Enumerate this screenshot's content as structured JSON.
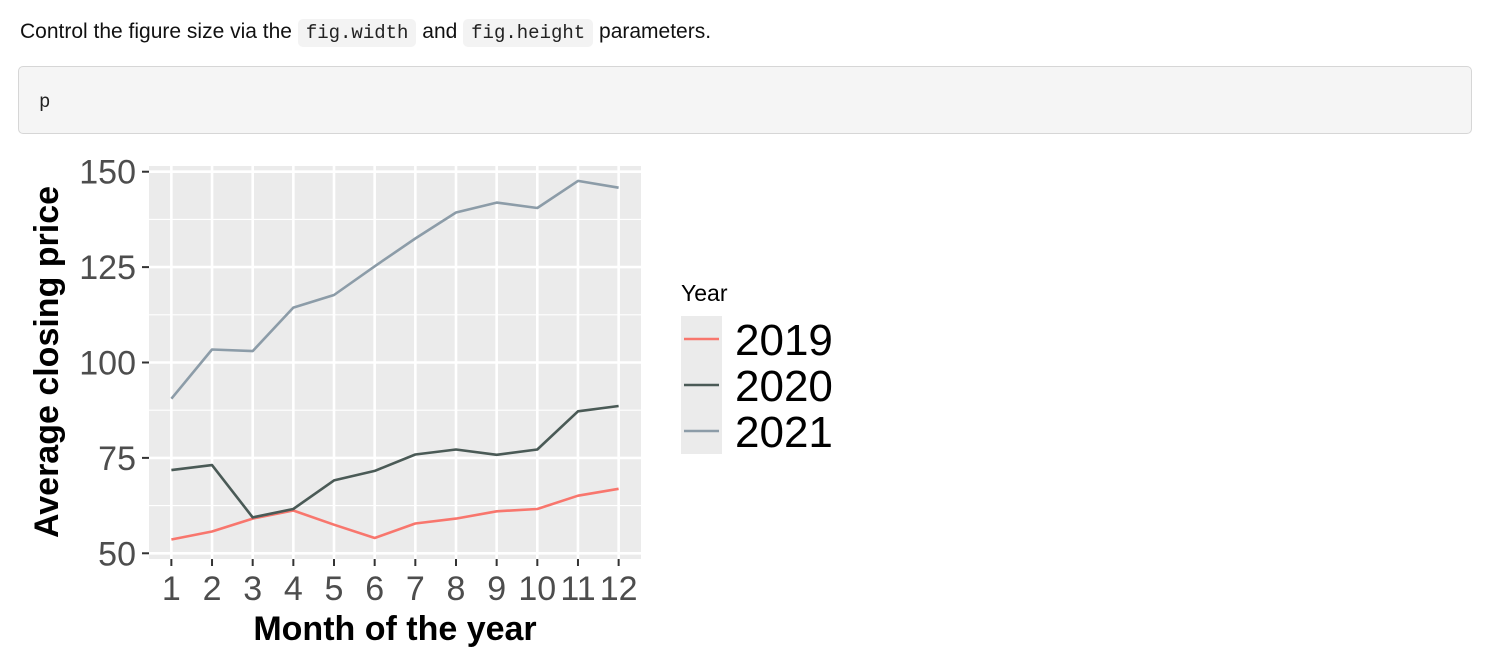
{
  "intro": {
    "before": "Control the figure size via the ",
    "code1": "fig.width",
    "middle": " and ",
    "code2": "fig.height",
    "after": " parameters."
  },
  "code_block": {
    "text": "p"
  },
  "chart_data": {
    "type": "line",
    "title": "",
    "xlabel": "Month of the year",
    "ylabel": "Average closing price",
    "x": [
      1,
      2,
      3,
      4,
      5,
      6,
      7,
      8,
      9,
      10,
      11,
      12
    ],
    "xticks": [
      "1",
      "2",
      "3",
      "4",
      "5",
      "6",
      "7",
      "8",
      "9",
      "10",
      "11",
      "12"
    ],
    "yticks": [
      50,
      75,
      100,
      125,
      150
    ],
    "ylim": [
      48.5,
      151.5
    ],
    "xlim": [
      0.45,
      12.55
    ],
    "grid": true,
    "legend": {
      "title": "Year",
      "position": "right"
    },
    "series": [
      {
        "name": "2019",
        "color": "#F8766D",
        "values": [
          53.6,
          55.7,
          59.1,
          61.2,
          57.5,
          54.0,
          57.8,
          59.1,
          61.0,
          61.6,
          65.1,
          66.9
        ]
      },
      {
        "name": "2020",
        "color": "#4A5A56",
        "values": [
          71.8,
          73.1,
          59.4,
          61.6,
          69.1,
          71.6,
          75.9,
          77.2,
          75.8,
          77.2,
          87.2,
          88.6
        ]
      },
      {
        "name": "2021",
        "color": "#8C9CA8",
        "values": [
          90.5,
          103.4,
          103.0,
          114.4,
          117.7,
          125.2,
          132.5,
          139.3,
          141.9,
          140.5,
          147.6,
          145.8
        ]
      }
    ]
  }
}
